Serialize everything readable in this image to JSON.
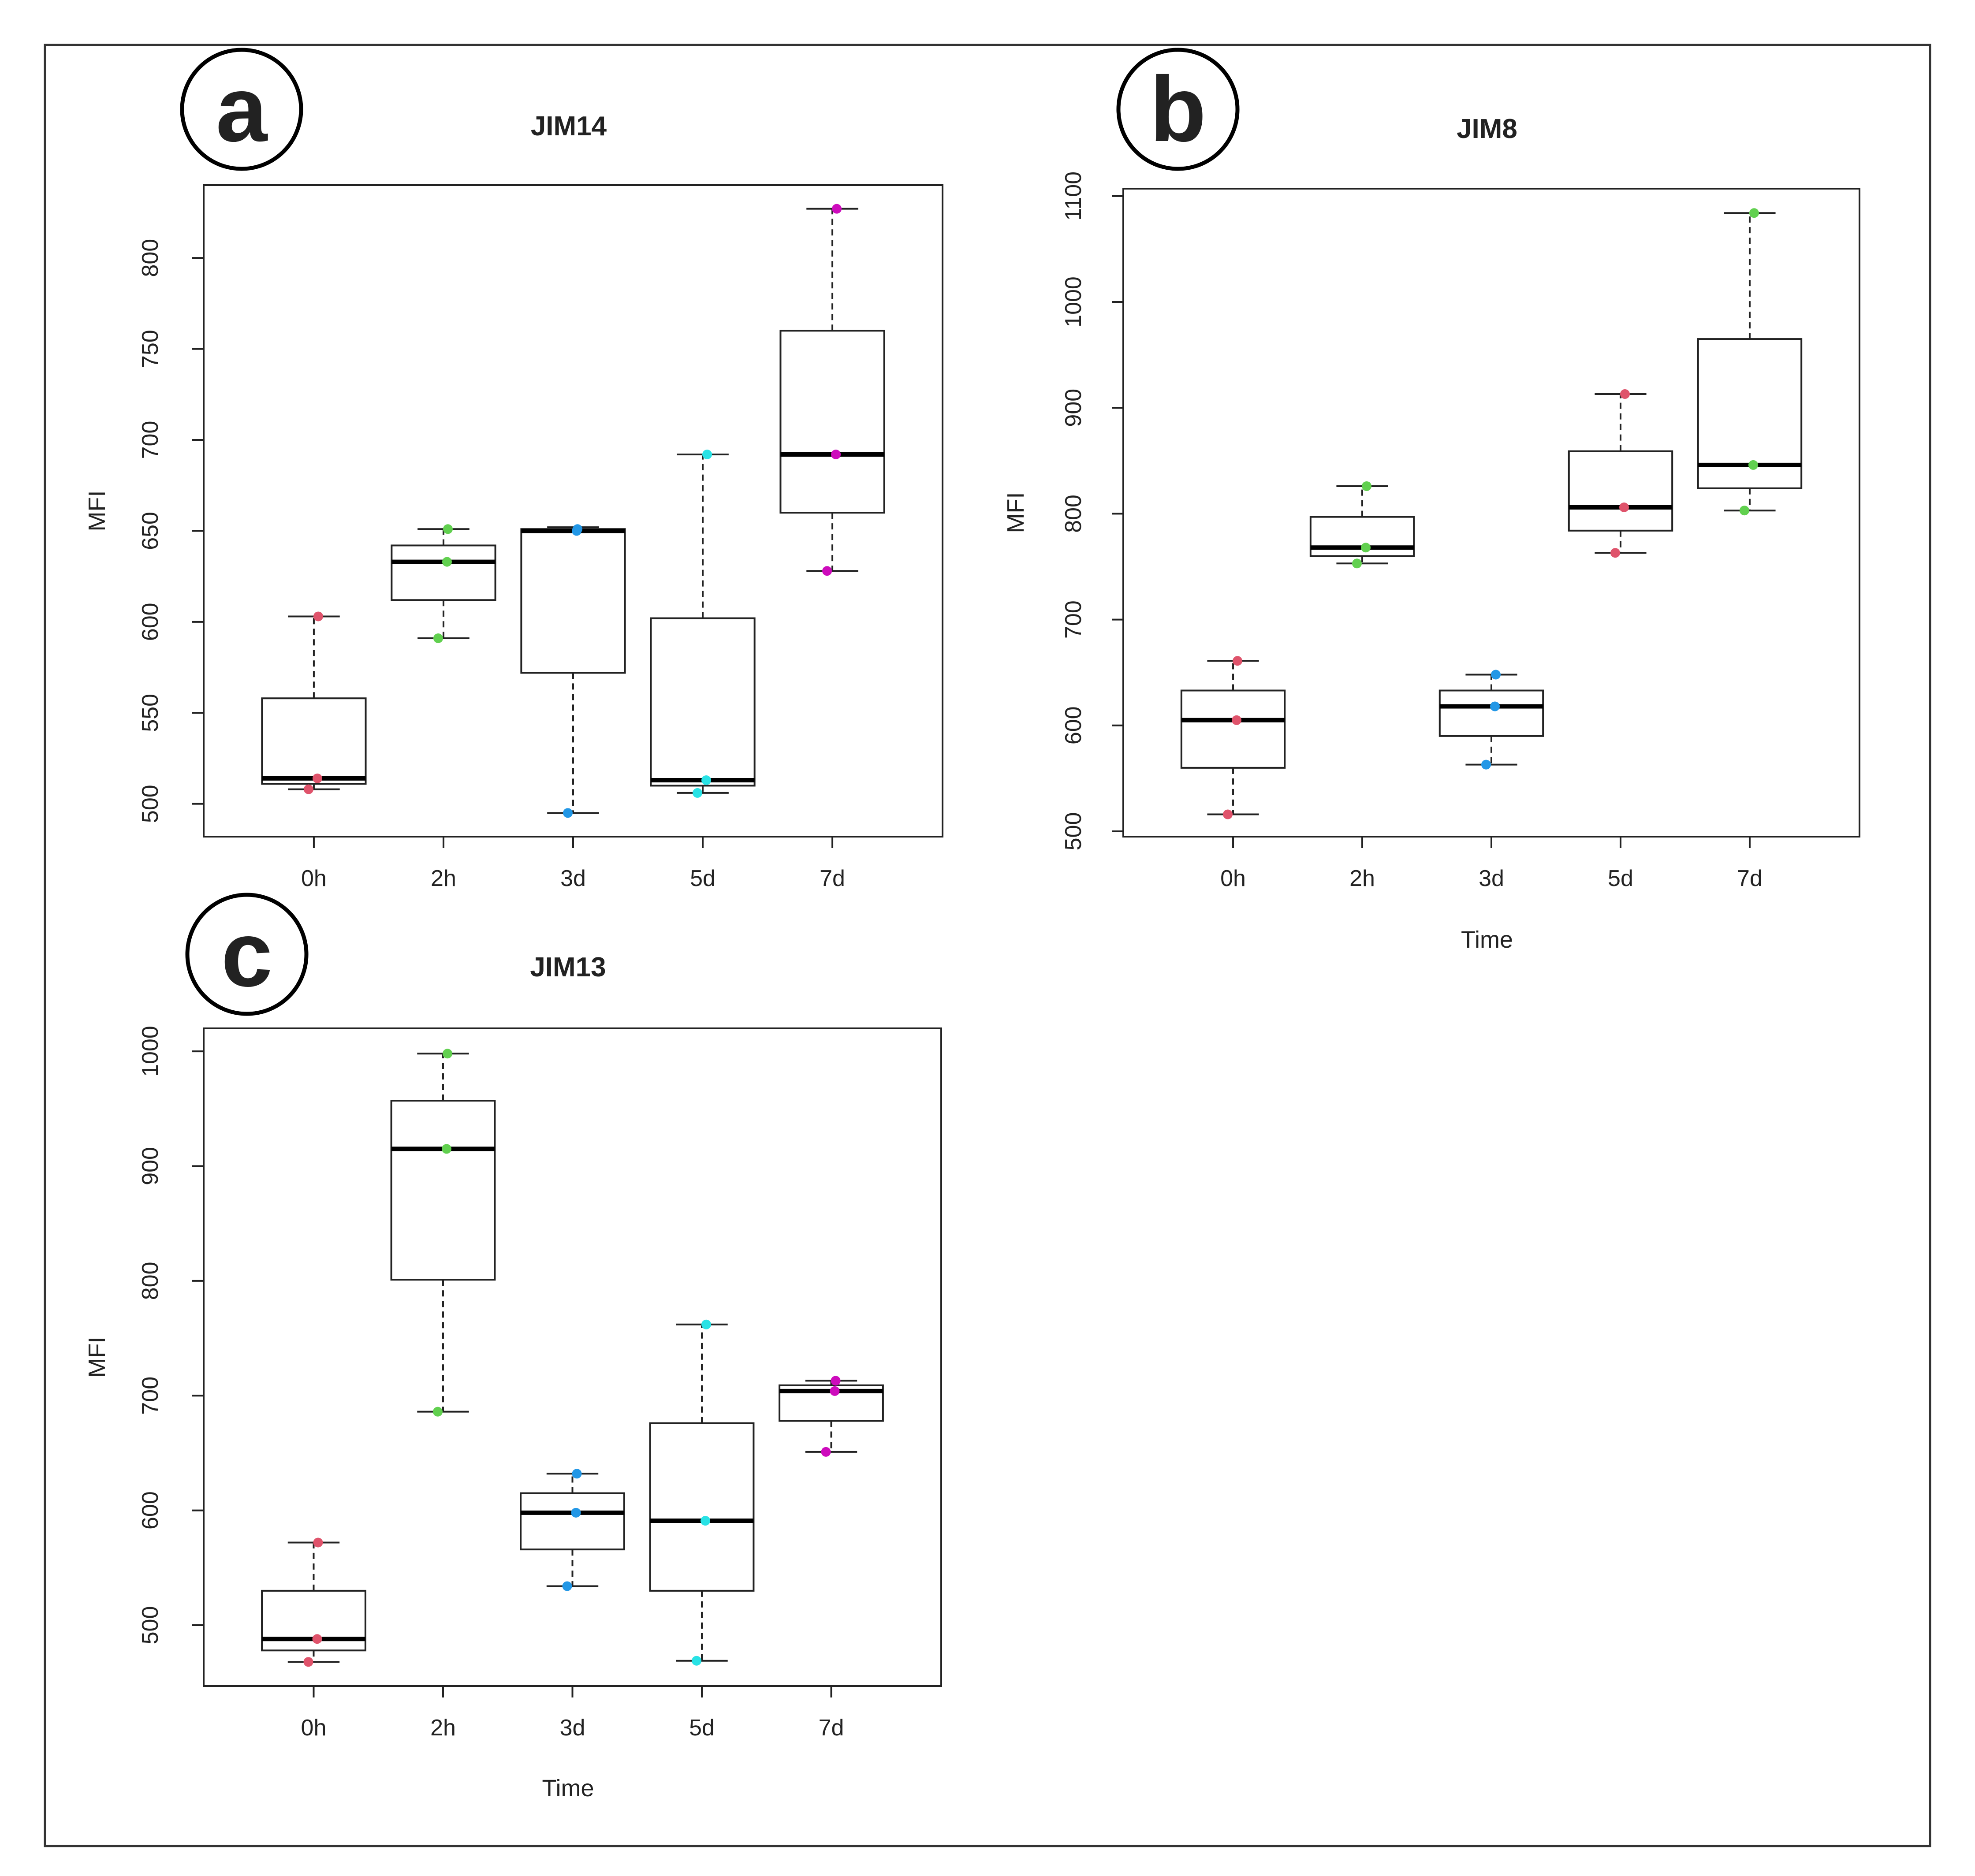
{
  "chart_data": [
    {
      "panel": "a",
      "type": "box",
      "title": "JIM14",
      "xlabel": "",
      "ylabel": "MFI",
      "categories": [
        "0h",
        "2h",
        "3d",
        "5d",
        "7d"
      ],
      "ylim": [
        482,
        840
      ],
      "yticks": [
        500,
        550,
        600,
        650,
        700,
        750,
        800
      ],
      "boxes": [
        {
          "category": "0h",
          "whisker_low": 508,
          "q1": 511,
          "median": 514,
          "q3": 558,
          "whisker_high": 603,
          "points": [
            {
              "y": 603,
              "color": "#df536b"
            },
            {
              "y": 514,
              "color": "#df536b"
            },
            {
              "y": 508,
              "color": "#df536b"
            }
          ]
        },
        {
          "category": "2h",
          "whisker_low": 591,
          "q1": 612,
          "median": 633,
          "q3": 642,
          "whisker_high": 651,
          "points": [
            {
              "y": 651,
              "color": "#61d04f"
            },
            {
              "y": 633,
              "color": "#61d04f"
            },
            {
              "y": 591,
              "color": "#61d04f"
            }
          ]
        },
        {
          "category": "3d",
          "whisker_low": 495,
          "q1": 572,
          "median": 650,
          "q3": 651,
          "whisker_high": 652,
          "points": [
            {
              "y": 651,
              "color": "#2297e6"
            },
            {
              "y": 650,
              "color": "#2297e6"
            },
            {
              "y": 495,
              "color": "#2297e6"
            }
          ]
        },
        {
          "category": "5d",
          "whisker_low": 506,
          "q1": 510,
          "median": 513,
          "q3": 602,
          "whisker_high": 692,
          "points": [
            {
              "y": 692,
              "color": "#28e2e5"
            },
            {
              "y": 513,
              "color": "#28e2e5"
            },
            {
              "y": 506,
              "color": "#28e2e5"
            }
          ]
        },
        {
          "category": "7d",
          "whisker_low": 628,
          "q1": 660,
          "median": 692,
          "q3": 760,
          "whisker_high": 827,
          "points": [
            {
              "y": 827,
              "color": "#cd0bbc"
            },
            {
              "y": 692,
              "color": "#cd0bbc"
            },
            {
              "y": 628,
              "color": "#cd0bbc"
            }
          ]
        }
      ]
    },
    {
      "panel": "b",
      "type": "box",
      "title": "JIM8",
      "xlabel": "Time",
      "ylabel": "MFI",
      "categories": [
        "0h",
        "2h",
        "3d",
        "5d",
        "7d"
      ],
      "ylim": [
        495,
        1107
      ],
      "yticks": [
        500,
        600,
        700,
        800,
        900,
        1000,
        1100
      ],
      "boxes": [
        {
          "category": "0h",
          "whisker_low": 516,
          "q1": 560,
          "median": 605,
          "q3": 633,
          "whisker_high": 661,
          "points": [
            {
              "y": 661,
              "color": "#df536b"
            },
            {
              "y": 605,
              "color": "#df536b"
            },
            {
              "y": 516,
              "color": "#df536b"
            }
          ]
        },
        {
          "category": "2h",
          "whisker_low": 753,
          "q1": 760,
          "median": 768,
          "q3": 797,
          "whisker_high": 826,
          "points": [
            {
              "y": 826,
              "color": "#61d04f"
            },
            {
              "y": 768,
              "color": "#61d04f"
            },
            {
              "y": 753,
              "color": "#61d04f"
            }
          ]
        },
        {
          "category": "3d",
          "whisker_low": 563,
          "q1": 590,
          "median": 618,
          "q3": 633,
          "whisker_high": 648,
          "points": [
            {
              "y": 648,
              "color": "#2297e6"
            },
            {
              "y": 618,
              "color": "#2297e6"
            },
            {
              "y": 563,
              "color": "#2297e6"
            }
          ]
        },
        {
          "category": "5d",
          "whisker_low": 763,
          "q1": 784,
          "median": 806,
          "q3": 859,
          "whisker_high": 913,
          "points": [
            {
              "y": 913,
              "color": "#df536b"
            },
            {
              "y": 806,
              "color": "#df536b"
            },
            {
              "y": 763,
              "color": "#df536b"
            }
          ]
        },
        {
          "category": "7d",
          "whisker_low": 803,
          "q1": 824,
          "median": 846,
          "q3": 965,
          "whisker_high": 1084,
          "points": [
            {
              "y": 1084,
              "color": "#61d04f"
            },
            {
              "y": 846,
              "color": "#61d04f"
            },
            {
              "y": 803,
              "color": "#61d04f"
            }
          ]
        }
      ]
    },
    {
      "panel": "c",
      "type": "box",
      "title": "JIM13",
      "xlabel": "Time",
      "ylabel": "MFI",
      "categories": [
        "0h",
        "2h",
        "3d",
        "5d",
        "7d"
      ],
      "ylim": [
        447,
        1020
      ],
      "yticks": [
        500,
        600,
        700,
        800,
        900,
        1000
      ],
      "boxes": [
        {
          "category": "0h",
          "whisker_low": 468,
          "q1": 478,
          "median": 488,
          "q3": 530,
          "whisker_high": 572,
          "points": [
            {
              "y": 572,
              "color": "#df536b"
            },
            {
              "y": 488,
              "color": "#df536b"
            },
            {
              "y": 468,
              "color": "#df536b"
            }
          ]
        },
        {
          "category": "2h",
          "whisker_low": 686,
          "q1": 801,
          "median": 915,
          "q3": 957,
          "whisker_high": 998,
          "points": [
            {
              "y": 998,
              "color": "#61d04f"
            },
            {
              "y": 915,
              "color": "#61d04f"
            },
            {
              "y": 686,
              "color": "#61d04f"
            }
          ]
        },
        {
          "category": "3d",
          "whisker_low": 534,
          "q1": 566,
          "median": 598,
          "q3": 615,
          "whisker_high": 632,
          "points": [
            {
              "y": 632,
              "color": "#2297e6"
            },
            {
              "y": 598,
              "color": "#2297e6"
            },
            {
              "y": 534,
              "color": "#2297e6"
            }
          ]
        },
        {
          "category": "5d",
          "whisker_low": 469,
          "q1": 530,
          "median": 591,
          "q3": 676,
          "whisker_high": 762,
          "points": [
            {
              "y": 762,
              "color": "#28e2e5"
            },
            {
              "y": 591,
              "color": "#28e2e5"
            },
            {
              "y": 469,
              "color": "#28e2e5"
            }
          ]
        },
        {
          "category": "7d",
          "whisker_low": 651,
          "q1": 678,
          "median": 704,
          "q3": 709,
          "whisker_high": 713,
          "points": [
            {
              "y": 713,
              "color": "#cd0bbc"
            },
            {
              "y": 704,
              "color": "#cd0bbc"
            },
            {
              "y": 651,
              "color": "#cd0bbc"
            }
          ]
        }
      ]
    }
  ]
}
